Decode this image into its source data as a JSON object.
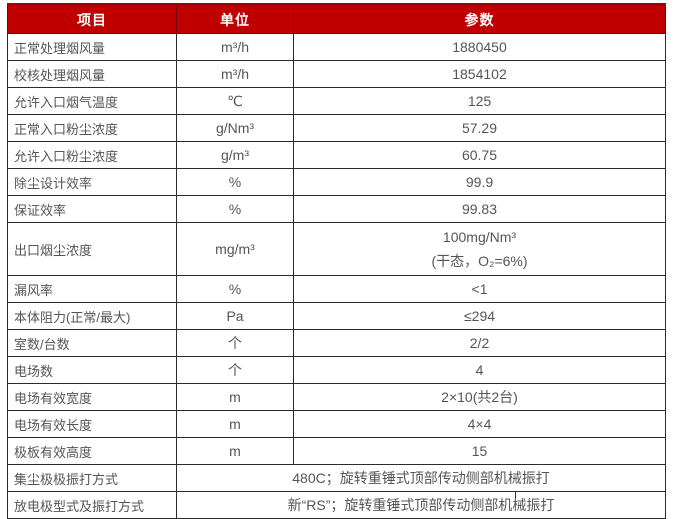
{
  "colors": {
    "header_bg": "#c00000",
    "header_text": "#ffffff",
    "border": "#2b2b2b",
    "body_text": "#555555"
  },
  "table": {
    "headers": [
      "项目",
      "单位",
      "参数"
    ],
    "rows": [
      {
        "item": "正常处理烟风量",
        "unit": "m³/h",
        "value": "1880450"
      },
      {
        "item": "校核处理烟风量",
        "unit": "m³/h",
        "value": "1854102"
      },
      {
        "item": "允许入口烟气温度",
        "unit": "℃",
        "value": "125"
      },
      {
        "item": "正常入口粉尘浓度",
        "unit": "g/Nm³",
        "value": "57.29"
      },
      {
        "item": "允许入口粉尘浓度",
        "unit": "g/m³",
        "value": "60.75"
      },
      {
        "item": "除尘设计效率",
        "unit": "%",
        "value": "99.9"
      },
      {
        "item": "保证效率",
        "unit": "%",
        "value": "99.83"
      },
      {
        "item": "出口烟尘浓度",
        "unit": "mg/m³",
        "value_lines": [
          "100mg/Nm³",
          "(干态，O₂=6%)"
        ],
        "tall": true
      },
      {
        "item": "漏风率",
        "unit": "%",
        "value": "<1"
      },
      {
        "item": "本体阻力(正常/最大)",
        "unit": "Pa",
        "value": "≤294"
      },
      {
        "item": "室数/台数",
        "unit": "个",
        "value": "2/2"
      },
      {
        "item": "电场数",
        "unit": "个",
        "value": "4"
      },
      {
        "item": "电场有效宽度",
        "unit": "m",
        "value": "2×10(共2台)"
      },
      {
        "item": "电场有效长度",
        "unit": "m",
        "value": "4×4"
      },
      {
        "item": "极板有效高度",
        "unit": "m",
        "value": "15"
      },
      {
        "item": "集尘极极振打方式",
        "merged": true,
        "value": "480C；旋转重锤式顶部传动侧部机械振打"
      },
      {
        "item": "放电极型式及振打方式",
        "merged": true,
        "value": "新“RS”；旋转重锤式顶部传动侧部机械振打"
      }
    ]
  }
}
